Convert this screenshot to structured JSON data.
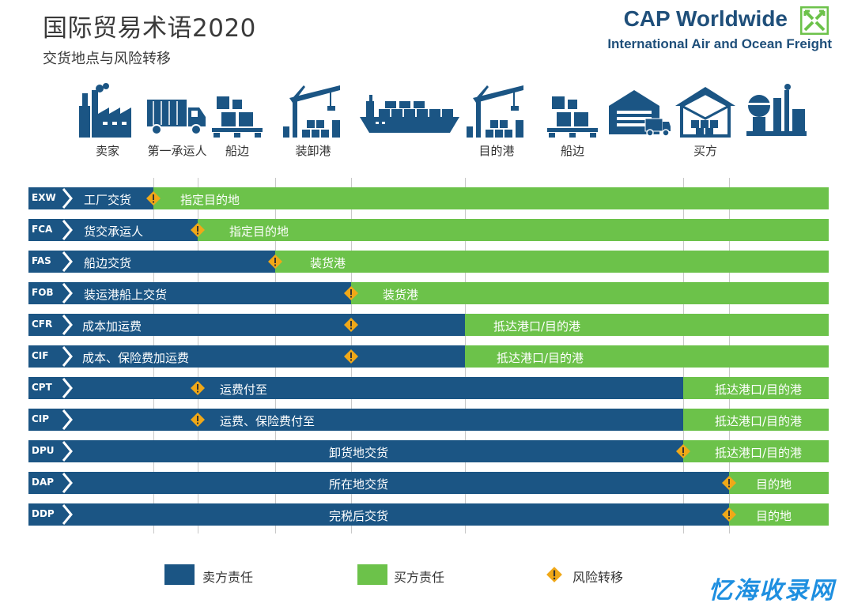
{
  "header": {
    "title": "国际贸易术语2020",
    "subtitle": "交货地点与风险转移"
  },
  "brand": {
    "name": "CAP Worldwide",
    "tagline": "International Air and Ocean Freight",
    "color": "#1f4f7a",
    "logo_color": "#6cc24a"
  },
  "stages": [
    {
      "icon": "factory-icon",
      "label": "卖家"
    },
    {
      "icon": "truck-icon",
      "label": "第一承运人"
    },
    {
      "icon": "pallet-icon",
      "label": "船边"
    },
    {
      "icon": "port-crane-icon",
      "label": "装卸港"
    },
    {
      "icon": "container-ship-icon",
      "label": ""
    },
    {
      "icon": "port-crane-icon",
      "label": "目的港"
    },
    {
      "icon": "pallet-icon",
      "label": "船边"
    },
    {
      "icon": "warehouse-truck-icon",
      "label": ""
    },
    {
      "icon": "warehouse-icon",
      "label": "买方"
    },
    {
      "icon": "plant-icon",
      "label": ""
    }
  ],
  "colors": {
    "seller": "#1b5584",
    "buyer": "#6cc24a",
    "risk": "#f0a818"
  },
  "terms": [
    {
      "code": "EXW",
      "seller_text": "工厂交货",
      "buyer_text": "指定目的地"
    },
    {
      "code": "FCA",
      "seller_text": "货交承运人",
      "buyer_text": "指定目的地"
    },
    {
      "code": "FAS",
      "seller_text": "船边交货",
      "buyer_text": "装货港"
    },
    {
      "code": "FOB",
      "seller_text": "装运港船上交货",
      "buyer_text": "装货港"
    },
    {
      "code": "CFR",
      "seller_text": "成本加运费",
      "buyer_text": "抵达港口/目的港"
    },
    {
      "code": "CIF",
      "seller_text": "成本、保险费加运费",
      "buyer_text": "抵达港口/目的港"
    },
    {
      "code": "CPT",
      "seller_text": "运费付至",
      "buyer_text": "抵达港口/目的港"
    },
    {
      "code": "CIP",
      "seller_text": "运费、保险费付至",
      "buyer_text": "抵达港口/目的港"
    },
    {
      "code": "DPU",
      "seller_text": "卸货地交货",
      "buyer_text": "抵达港口/目的港"
    },
    {
      "code": "DAP",
      "seller_text": "所在地交货",
      "buyer_text": "目的地"
    },
    {
      "code": "DDP",
      "seller_text": "完税后交货",
      "buyer_text": "目的地"
    }
  ],
  "legend": {
    "seller": "卖方责任",
    "buyer": "买方责任",
    "risk": "风险转移"
  },
  "watermark": "忆海收录网"
}
